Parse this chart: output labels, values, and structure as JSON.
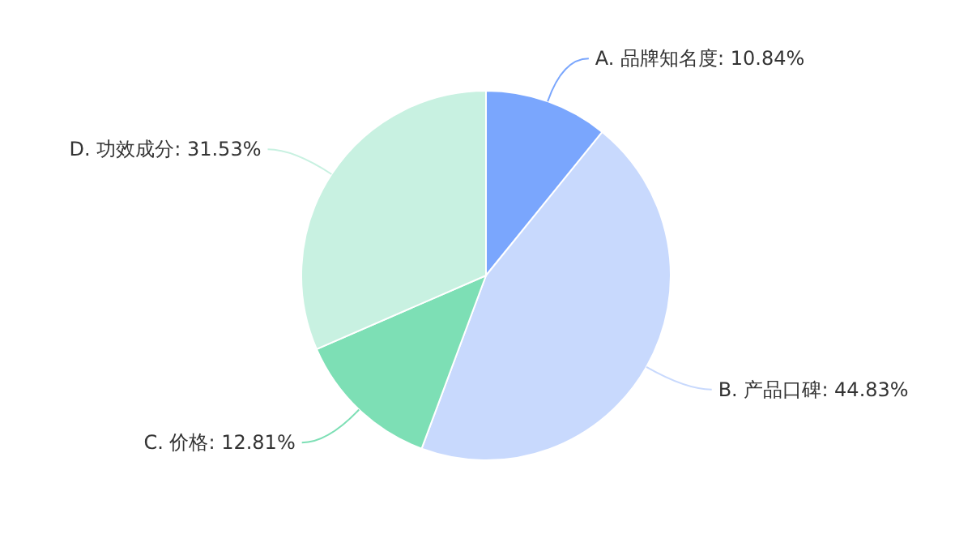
{
  "chart_data": {
    "type": "pie",
    "categories": [
      "A. 品牌知名度",
      "B. 产品口碑",
      "C. 价格",
      "D. 功效成分"
    ],
    "values": [
      10.84,
      44.83,
      12.81,
      31.53
    ],
    "value_labels": [
      "10.84%",
      "44.83%",
      "12.81%",
      "31.53%"
    ],
    "colors": [
      "#7aa6fd",
      "#c8d9fd",
      "#7ddfb5",
      "#c8f1e1"
    ],
    "legend": false
  }
}
